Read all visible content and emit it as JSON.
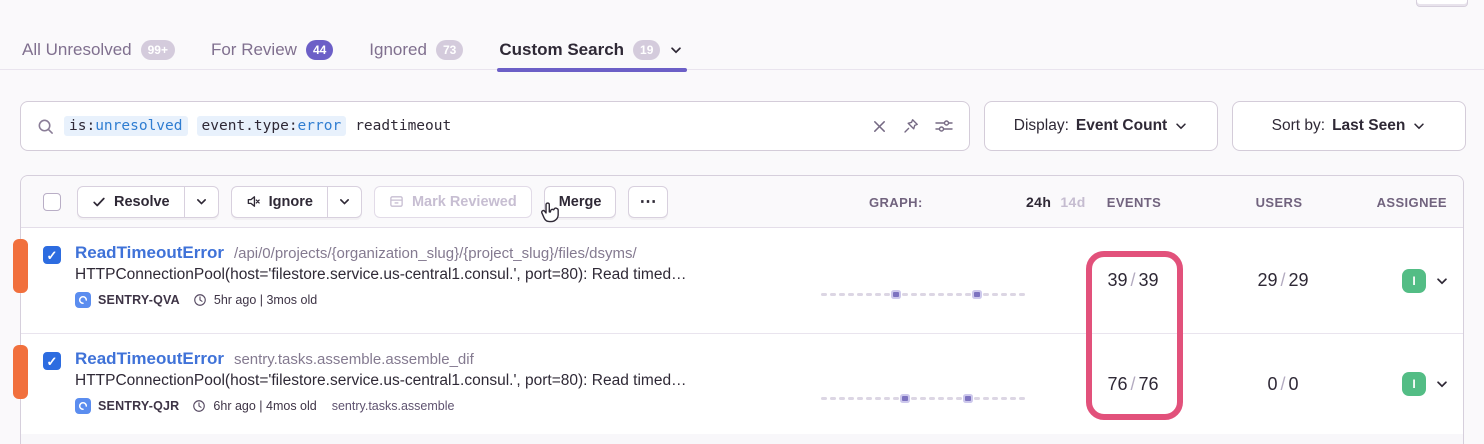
{
  "colors": {
    "accent": "#6C5FC7",
    "badge-muted-bg": "#d4cbdc",
    "badge-purple-bg": "#6C5FC7",
    "link-blue": "#3f72d8",
    "token-blue": "#2f7dd1",
    "token-bg": "#e8f1fc",
    "level-orange": "#f1703d",
    "checkbox-blue": "#2d6ce0",
    "avatar-green": "#53bd85",
    "annotation-pink": "#e2517b",
    "text-dark": "#2f2936",
    "text-muted": "#80708f"
  },
  "tabs": {
    "items": [
      {
        "label": "All Unresolved",
        "badge": "99+"
      },
      {
        "label": "For Review",
        "badge": "44"
      },
      {
        "label": "Ignored",
        "badge": "73"
      },
      {
        "label": "Custom Search",
        "badge": "19"
      }
    ]
  },
  "search": {
    "tokens": [
      {
        "key": "is:",
        "value": "unresolved"
      },
      {
        "key": "event.type:",
        "value": "error"
      }
    ],
    "free_text": "readtimeout"
  },
  "display_dropdown": {
    "label": "Display:",
    "value": "Event Count"
  },
  "sort_dropdown": {
    "label": "Sort by:",
    "value": "Last Seen"
  },
  "toolbar": {
    "resolve_label": "Resolve",
    "ignore_label": "Ignore",
    "mark_reviewed_label": "Mark Reviewed",
    "merge_label": "Merge",
    "more_label": "⋯"
  },
  "columns": {
    "graph": "GRAPH:",
    "range_24h": "24h",
    "range_14d": "14d",
    "events": "EVENTS",
    "users": "USERS",
    "assignee": "ASSIGNEE"
  },
  "list": {
    "separator": "/"
  },
  "rows": [
    {
      "checked": true,
      "title": "ReadTimeoutError",
      "culprit": "/api/0/projects/{organization_slug}/{project_slug}/files/dsyms/",
      "message": "HTTPConnectionPool(host='filestore.service.us-central1.consul.', port=80): Read timed…",
      "project": "SENTRY-QVA",
      "age": "5hr ago | 3mos old",
      "tag": "",
      "events": [
        "39",
        "39"
      ],
      "users": [
        "29",
        "29"
      ],
      "assignee_initial": "I",
      "sparkline": [
        0,
        0,
        0,
        0,
        0,
        0,
        0,
        0,
        1,
        0,
        0,
        0,
        0,
        0,
        0,
        0,
        0,
        1,
        0,
        0,
        0,
        0,
        0
      ]
    },
    {
      "checked": true,
      "title": "ReadTimeoutError",
      "culprit": "sentry.tasks.assemble.assemble_dif",
      "message": "HTTPConnectionPool(host='filestore.service.us-central1.consul.', port=80): Read timed…",
      "project": "SENTRY-QJR",
      "age": "6hr ago | 4mos old",
      "tag": "sentry.tasks.assemble",
      "events": [
        "76",
        "76"
      ],
      "users": [
        "0",
        "0"
      ],
      "assignee_initial": "I",
      "sparkline": [
        0,
        0,
        0,
        0,
        0,
        0,
        0,
        0,
        0,
        1,
        0,
        0,
        0,
        0,
        0,
        0,
        1,
        0,
        0,
        0,
        0,
        0,
        0
      ]
    }
  ]
}
